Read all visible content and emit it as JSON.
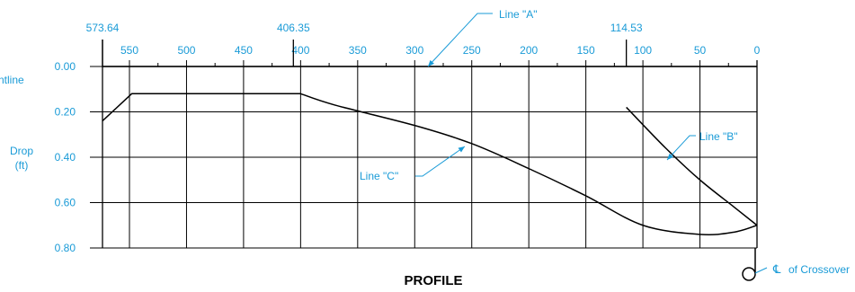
{
  "colors": {
    "label": "#1a9bd7",
    "line": "#000000",
    "grid": "#000000"
  },
  "chart_data": {
    "type": "line",
    "title": "PROFILE",
    "xaxis": {
      "reversed": true,
      "lim": [
        573.64,
        0
      ],
      "ticks": [
        550,
        500,
        450,
        400,
        350,
        300,
        250,
        200,
        150,
        100,
        50,
        0
      ],
      "tick_labels": [
        "550",
        "500",
        "450",
        "400",
        "350",
        "300",
        "250",
        "200",
        "150",
        "100",
        "50",
        "0"
      ],
      "minor_ticks": [
        525,
        475,
        425,
        375,
        325,
        275,
        225,
        175,
        125,
        75,
        25
      ],
      "special_stations": [
        {
          "value": 573.64,
          "label": "573.64"
        },
        {
          "value": 406.35,
          "label": "406.35"
        },
        {
          "value": 114.53,
          "label": "114.53"
        }
      ]
    },
    "yaxis": {
      "lim": [
        0,
        0.8
      ],
      "reversed": true,
      "ticks": [
        0,
        0.2,
        0.4,
        0.6,
        0.8
      ],
      "tick_labels": [
        "0.00",
        "0.20",
        "0.40",
        "0.60",
        "0.80"
      ],
      "label_line1": "Drop",
      "label_line2": "(ft)",
      "top_partial_label": "ntline"
    },
    "grid": true,
    "series": [
      {
        "name": "Line \"A\"",
        "x": [
          573.64,
          0
        ],
        "y": [
          0,
          0
        ]
      },
      {
        "name": "Line \"B\"",
        "x": [
          114.53,
          80,
          50,
          20,
          0
        ],
        "y": [
          0.18,
          0.36,
          0.5,
          0.62,
          0.7
        ]
      },
      {
        "name": "Line \"C\"",
        "x": [
          573.64,
          548,
          400,
          370,
          300,
          250,
          200,
          150,
          100,
          50,
          20,
          0
        ],
        "y": [
          0.24,
          0.12,
          0.12,
          0.17,
          0.26,
          0.34,
          0.45,
          0.57,
          0.7,
          0.74,
          0.73,
          0.7
        ]
      }
    ],
    "callouts": [
      {
        "series": "Line \"A\"",
        "label": "Line \"A\""
      },
      {
        "series": "Line \"B\"",
        "label": "Line \"B\""
      },
      {
        "series": "Line \"C\"",
        "label": "Line \"C\""
      }
    ],
    "crossover_label": "of Crossover",
    "crossover_symbol": "℄"
  }
}
